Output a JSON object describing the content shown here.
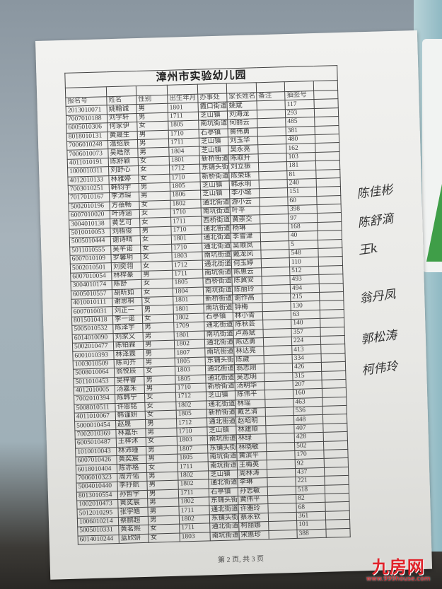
{
  "document": {
    "title": "漳州市实验幼儿园",
    "headers": [
      "报名号",
      "姓名",
      "性别",
      "出生年月",
      "办事处",
      "家长姓名",
      "备注",
      "抽签号",
      ""
    ],
    "rows": [
      [
        "2013010071",
        "姚翰诚",
        "男",
        "1801",
        "霞口街道",
        "姚斌",
        "",
        "117",
        ""
      ],
      [
        "7007010188",
        "刘宇轩",
        "男",
        "1711",
        "芝山镇",
        "刘海龙",
        "",
        "293",
        ""
      ],
      [
        "6005010306",
        "何家伊",
        "女",
        "1805",
        "南坑街道",
        "何丽云",
        "",
        "485",
        ""
      ],
      [
        "8018010131",
        "黄晟生",
        "男",
        "1710",
        "石亭镇",
        "黄伟勇",
        "",
        "381",
        ""
      ],
      [
        "7006010248",
        "温绍辰",
        "男",
        "1711",
        "芝山镇",
        "刘玉华",
        "",
        "480",
        ""
      ],
      [
        "7006010073",
        "吴皓然",
        "男",
        "1804",
        "芝山镇",
        "吴永亮",
        "",
        "162",
        ""
      ],
      [
        "4011010191",
        "陈舒颖",
        "女",
        "1801",
        "新桥街道",
        "陈取升",
        "",
        "103",
        ""
      ],
      [
        "1000010311",
        "刘舒心",
        "女",
        "1712",
        "东铺头街",
        "刘立振",
        "",
        "181",
        ""
      ],
      [
        "4012010133",
        "林雅婷",
        "女",
        "1710",
        "新桥街道",
        "陈荣珠",
        "",
        "81",
        ""
      ],
      [
        "7003010251",
        "韩钧宇",
        "男",
        "1805",
        "芝山镇",
        "韩永明",
        "",
        "240",
        ""
      ],
      [
        "7017010167",
        "李沛琛",
        "男",
        "1806",
        "芝山镇",
        "李小城",
        "",
        "151",
        ""
      ],
      [
        "5002010196",
        "方蓓畅",
        "女",
        "1802",
        "通北街道",
        "游小云",
        "",
        "60",
        ""
      ],
      [
        "6007010020",
        "叶诗涵",
        "女",
        "1710",
        "南坑街道",
        "叶平",
        "",
        "398",
        ""
      ],
      [
        "3004010138",
        "黄艺可",
        "女",
        "1711",
        "西桥街道",
        "黄崇交",
        "",
        "97",
        ""
      ],
      [
        "5010010053",
        "刘梧俊",
        "男",
        "1710",
        "通北街道",
        "杨琳",
        "",
        "168",
        ""
      ],
      [
        "5005010444",
        "谢诗晴",
        "女",
        "1801",
        "通北街道",
        "李雪津",
        "",
        "40",
        ""
      ],
      [
        "5011010555",
        "吴芊诺",
        "女",
        "1710",
        "通北街道",
        "吴顺凤",
        "",
        "5",
        ""
      ],
      [
        "6007010109",
        "罗馨玥",
        "女",
        "1803",
        "南坑街道",
        "戴龙凤",
        "",
        "548",
        ""
      ],
      [
        "5002010501",
        "刘奕翎",
        "女",
        "1712",
        "通北街道",
        "何玉婷",
        "",
        "110",
        ""
      ],
      [
        "6007010054",
        "林梓豪",
        "男",
        "1711",
        "南坑街道",
        "陈惠云",
        "",
        "512",
        ""
      ],
      [
        "3004010174",
        "陈舒",
        "女",
        "1805",
        "西桥街道",
        "陈冀安",
        "",
        "493",
        ""
      ],
      [
        "6005010557",
        "胡昕如",
        "女",
        "1804",
        "南坑街道",
        "陈丽玲",
        "",
        "494",
        ""
      ],
      [
        "4010010111",
        "谢思桐",
        "女",
        "1801",
        "新桥街道",
        "谢作高",
        "",
        "215",
        ""
      ],
      [
        "6007010031",
        "刘正一",
        "男",
        "1801",
        "南坑街道",
        "钟梅",
        "",
        "130",
        ""
      ],
      [
        "8015010418",
        "李一诺",
        "女",
        "1802",
        "石亭镇",
        "林小青",
        "",
        "63",
        ""
      ],
      [
        "5005010532",
        "陈泽宇",
        "男",
        "1709",
        "通北街道",
        "陈秋芸",
        "",
        "140",
        ""
      ],
      [
        "6014010090",
        "刘家义",
        "男",
        "1801",
        "南坑街道",
        "卢燕斌",
        "",
        "357",
        ""
      ],
      [
        "5002010477",
        "陈铂霖",
        "男",
        "1802",
        "通北街道",
        "陈达勇",
        "",
        "224",
        ""
      ],
      [
        "6001010393",
        "林泽霖",
        "男",
        "1807",
        "南坑街道",
        "林达亮",
        "",
        "413",
        ""
      ],
      [
        "1003010509",
        "陈司齐",
        "男",
        "1805",
        "东铺头街",
        "陈崴",
        "",
        "334",
        ""
      ],
      [
        "5008010064",
        "翁悦辰",
        "女",
        "1803",
        "通北街道",
        "翁志刚",
        "",
        "426",
        ""
      ],
      [
        "5011010453",
        "吴梓睿",
        "男",
        "1805",
        "通北街道",
        "吴志明",
        "",
        "315",
        ""
      ],
      [
        "4012010005",
        "汤嘉禾",
        "男",
        "1710",
        "新桥街道",
        "汤明华",
        "",
        "207",
        ""
      ],
      [
        "7002010394",
        "陈韩宁",
        "女",
        "1712",
        "芝山镇",
        "陈伟平",
        "",
        "160",
        ""
      ],
      [
        "5008010511",
        "许恩铭",
        "女",
        "1802",
        "通北街道",
        "林瑶",
        "",
        "463",
        ""
      ],
      [
        "4011010067",
        "韩谨妍",
        "女",
        "1805",
        "新桥街道",
        "戴艺清",
        "",
        "536",
        ""
      ],
      [
        "5000010454",
        "赵晟",
        "男",
        "1712",
        "通北街道",
        "赵昭明",
        "",
        "448",
        ""
      ],
      [
        "7002010369",
        "林嘉乐",
        "男",
        "1710",
        "芝山镇",
        "林建顺",
        "",
        "407",
        ""
      ],
      [
        "6005010487",
        "王梓沐",
        "女",
        "1803",
        "南坑街道",
        "林绿",
        "",
        "428",
        ""
      ],
      [
        "1010010043",
        "林沛瑾",
        "男",
        "1807",
        "东铺头街",
        "林晓敏",
        "",
        "502",
        ""
      ],
      [
        "6007010426",
        "黄奕宸",
        "男",
        "1805",
        "南坑街道",
        "黄滨平",
        "",
        "170",
        ""
      ],
      [
        "6018010404",
        "陈亦格",
        "女",
        "1711",
        "南坑街道",
        "王梅英",
        "",
        "92",
        ""
      ],
      [
        "7006010323",
        "周亓佑",
        "男",
        "1802",
        "芝山镇",
        "周林涛",
        "",
        "437",
        ""
      ],
      [
        "5004010440",
        "李抒航",
        "男",
        "1802",
        "通北街道",
        "李琳",
        "",
        "221",
        ""
      ],
      [
        "8013010554",
        "孙哲宇",
        "男",
        "1711",
        "石亭镇",
        "孙志敏",
        "",
        "518",
        ""
      ],
      [
        "1002010473",
        "黄奕宸",
        "男",
        "1802",
        "东铺头街",
        "黄伟平",
        "",
        "82",
        ""
      ],
      [
        "5012010295",
        "张宇皓",
        "男",
        "1711",
        "通北街道",
        "许雅玲",
        "",
        "68",
        ""
      ],
      [
        "1006010214",
        "蔡鹏超",
        "男",
        "1802",
        "东铺头街",
        "蔡永钦",
        "",
        "361",
        ""
      ],
      [
        "5005010331",
        "黄茗熙",
        "女",
        "1711",
        "通北街道",
        "柯丽娜",
        "",
        "101",
        ""
      ],
      [
        "6014010244",
        "蓝欣妍",
        "女",
        "1803",
        "南坑街道",
        "宋惠珍",
        "",
        "388",
        ""
      ]
    ],
    "footer": "第 2 页, 共 3 页"
  },
  "handwritten_signatures": [
    "陈佳彬",
    "陈舒滴",
    "王k",
    "翁丹凤",
    "郭松涛",
    "柯伟玲"
  ],
  "watermark": {
    "name": "九房网",
    "url": "www.999house.com",
    "color": "#e0222a"
  }
}
